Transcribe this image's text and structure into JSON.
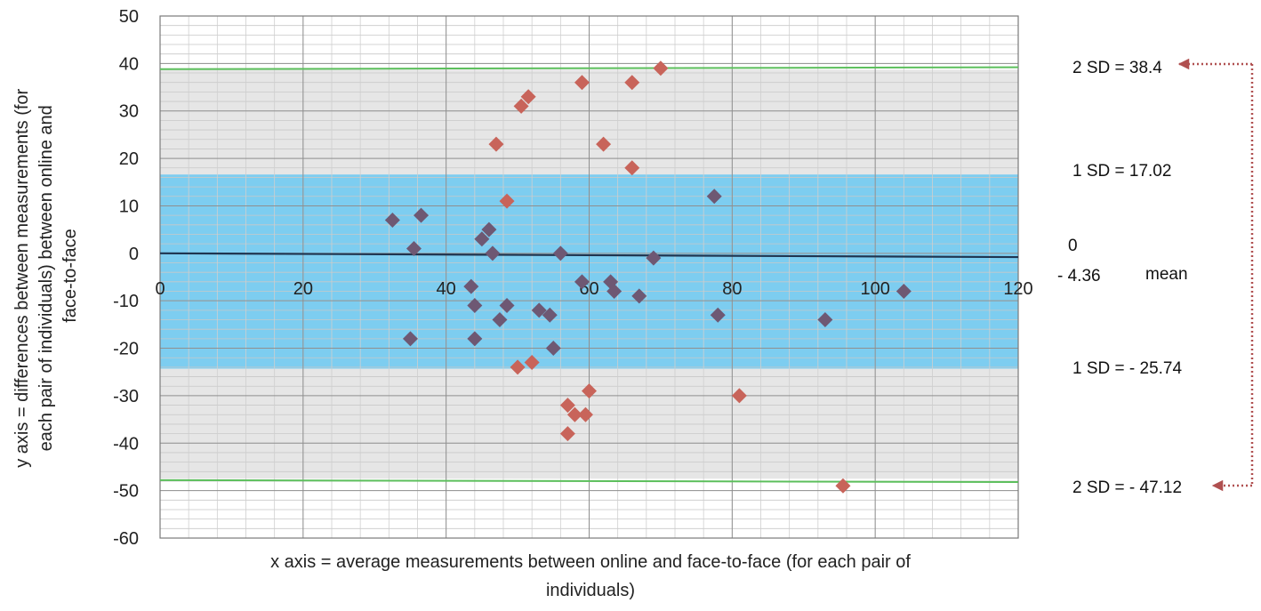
{
  "chart_data": {
    "type": "scatter",
    "title": "",
    "xlabel_lines": [
      "x axis = average measurements between online and face-to-face (for each pair of",
      "individuals)"
    ],
    "ylabel_lines": [
      "y axis = differences between measurements (for",
      "each pair of individuals) between online and",
      "face-to-face"
    ],
    "xlim": [
      0,
      120
    ],
    "ylim": [
      -60,
      50
    ],
    "x_ticks": [
      "0",
      "20",
      "40",
      "60",
      "80",
      "100",
      "120"
    ],
    "y_ticks": [
      "50",
      "40",
      "30",
      "20",
      "10",
      "0",
      "-10",
      "-20",
      "-30",
      "-40",
      "-50",
      "-60"
    ],
    "grid": true,
    "bands": {
      "inner": {
        "from": -24.3,
        "to": 16.6,
        "color": "#7dcdf0"
      },
      "outer": {
        "from": -47.5,
        "to": 38.7,
        "color": "#e6e6e6"
      }
    },
    "limit_lines": [
      {
        "y_start": 38.8,
        "y_end": 39.2,
        "color": "#5cbf5c"
      },
      {
        "y_start": -47.8,
        "y_end": -48.2,
        "color": "#5cbf5c"
      }
    ],
    "mean_line": {
      "y_start": 0,
      "y_end": -0.8,
      "color": "#1f3550"
    },
    "annotations": {
      "sd2_upper": "2 SD = 38.4",
      "sd1_upper": "1 SD = 17.02",
      "zero": "0",
      "mean_value": "- 4.36",
      "mean_word": "mean",
      "sd1_lower": "1 SD = - 25.74",
      "sd2_lower": "2 SD = - 47.12"
    },
    "series": [
      {
        "marker_color": "#6e5873",
        "points": [
          [
            32.5,
            7
          ],
          [
            36.5,
            8
          ],
          [
            35.5,
            1
          ],
          [
            35,
            -18
          ],
          [
            43.5,
            -7
          ],
          [
            44,
            -11
          ],
          [
            44,
            -18
          ],
          [
            45,
            3
          ],
          [
            46,
            5
          ],
          [
            46.5,
            0
          ],
          [
            47.5,
            -14
          ],
          [
            48.5,
            -11
          ],
          [
            53,
            -12
          ],
          [
            54.5,
            -13
          ],
          [
            55,
            -20
          ],
          [
            56,
            0
          ],
          [
            59,
            -6
          ],
          [
            63,
            -6
          ],
          [
            63.5,
            -8
          ],
          [
            67,
            -9
          ],
          [
            69,
            -1
          ],
          [
            77.5,
            12
          ],
          [
            78,
            -13
          ],
          [
            93,
            -14
          ],
          [
            104,
            -8
          ]
        ]
      },
      {
        "marker_color": "#c8645a",
        "points": [
          [
            47,
            23
          ],
          [
            48.5,
            11
          ],
          [
            50,
            -24
          ],
          [
            50.5,
            31
          ],
          [
            51.5,
            33
          ],
          [
            52,
            -23
          ],
          [
            57,
            -32
          ],
          [
            57,
            -38
          ],
          [
            58,
            -34
          ],
          [
            59,
            36
          ],
          [
            59.5,
            -34
          ],
          [
            60,
            -29
          ],
          [
            62,
            23
          ],
          [
            66,
            36
          ],
          [
            66,
            18
          ],
          [
            70,
            39
          ],
          [
            81,
            -30
          ],
          [
            95.5,
            -49
          ]
        ]
      }
    ]
  }
}
